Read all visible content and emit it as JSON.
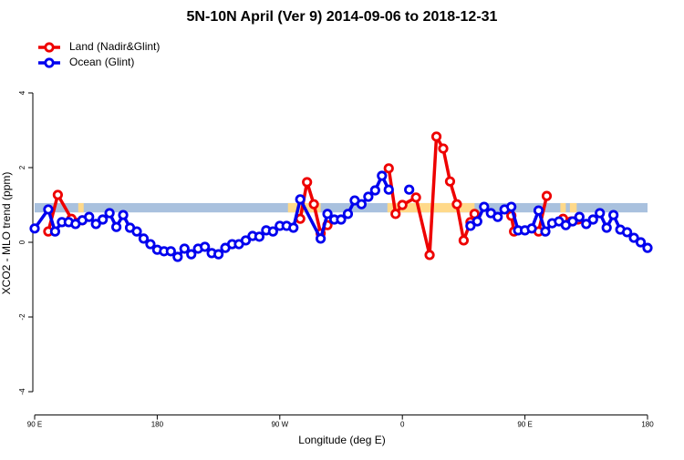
{
  "chart_data": {
    "type": "line",
    "title": "5N-10N April (Ver 9)   2014-09-06 to 2018-12-31",
    "x_label": "Longitude (deg E)",
    "y_label": "XCO2 - MLO trend (ppm)",
    "xlim": [
      90,
      540
    ],
    "xticks": [
      {
        "value": 90,
        "label": "90 E"
      },
      {
        "value": 180,
        "label": "180"
      },
      {
        "value": 270,
        "label": "90 W"
      },
      {
        "value": 360,
        "label": "0"
      },
      {
        "value": 450,
        "label": "90 E"
      },
      {
        "value": 540,
        "label": "180"
      }
    ],
    "ylim": [
      -4.6,
      5.6
    ],
    "yticks": [
      -4,
      -2,
      0,
      2,
      4
    ],
    "band": {
      "ylim": [
        0.8,
        1.05
      ],
      "color": "#a9c1de"
    },
    "highlights": {
      "color": "#ffd98a",
      "ranges": [
        [
          122,
          126
        ],
        [
          276,
          300
        ],
        [
          349,
          413
        ],
        [
          476,
          480
        ],
        [
          483,
          488
        ]
      ]
    },
    "legend": "top-left",
    "series": [
      {
        "name": "Land (Nadir&Glint)",
        "color": "#ee0000",
        "x": [
          100,
          107,
          117,
          125,
          200,
          285,
          290,
          295,
          300,
          305,
          325,
          350,
          355,
          360,
          370,
          380,
          385,
          390,
          395,
          400,
          405,
          410,
          413,
          430,
          440,
          442,
          450,
          460,
          466,
          472,
          478,
          484,
          489
        ],
        "values": [
          0.29,
          1.27,
          0.63,
          0.59,
          null,
          0.63,
          1.61,
          1.02,
          0.24,
          0.46,
          null,
          1.98,
          0.76,
          1.0,
          1.2,
          -0.34,
          2.83,
          2.51,
          1.63,
          1.02,
          0.05,
          0.54,
          0.76,
          null,
          0.71,
          0.29,
          null,
          0.29,
          1.24,
          null,
          0.63,
          0.56,
          0.61
        ]
      },
      {
        "name": "Ocean (Glint)",
        "color": "#0000ee",
        "x": [
          90,
          100,
          105,
          110,
          115,
          120,
          125,
          130,
          135,
          140,
          145,
          150,
          155,
          160,
          165,
          170,
          175,
          180,
          185,
          190,
          195,
          200,
          205,
          210,
          215,
          220,
          225,
          230,
          235,
          240,
          245,
          250,
          255,
          260,
          265,
          270,
          275,
          280,
          285,
          300,
          305,
          310,
          315,
          320,
          325,
          330,
          335,
          340,
          345,
          350,
          355,
          365,
          370,
          410,
          415,
          420,
          425,
          430,
          435,
          440,
          445,
          450,
          455,
          460,
          465,
          470,
          475,
          480,
          485,
          490,
          495,
          500,
          505,
          510,
          515,
          520,
          525,
          530,
          535,
          540
        ],
        "values": [
          0.37,
          0.88,
          0.29,
          0.54,
          0.54,
          0.49,
          0.59,
          0.68,
          0.49,
          0.61,
          0.78,
          0.41,
          0.73,
          0.39,
          0.29,
          0.1,
          -0.05,
          -0.2,
          -0.24,
          -0.24,
          -0.39,
          -0.17,
          -0.32,
          -0.17,
          -0.12,
          -0.29,
          -0.32,
          -0.15,
          -0.05,
          -0.05,
          0.05,
          0.17,
          0.15,
          0.32,
          0.29,
          0.44,
          0.44,
          0.39,
          1.15,
          0.1,
          0.76,
          0.61,
          0.61,
          0.76,
          1.12,
          1.02,
          1.22,
          1.39,
          1.78,
          1.41,
          null,
          1.41,
          null,
          0.44,
          0.56,
          0.95,
          0.78,
          0.68,
          0.88,
          0.95,
          0.32,
          0.32,
          0.37,
          0.85,
          0.29,
          0.51,
          0.56,
          0.46,
          0.56,
          0.68,
          0.49,
          0.61,
          0.78,
          0.39,
          0.73,
          0.34,
          0.27,
          0.12,
          0.0,
          -0.15
        ]
      }
    ]
  }
}
